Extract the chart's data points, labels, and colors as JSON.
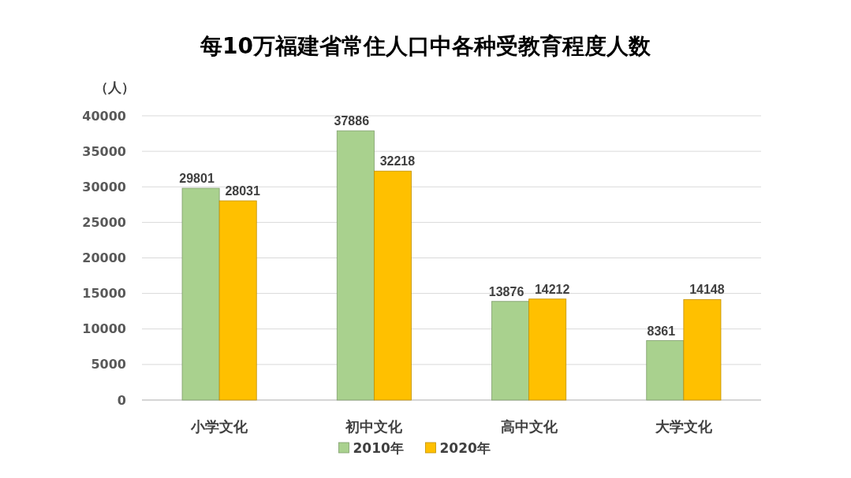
{
  "chart_data": {
    "type": "bar",
    "title": "每10万福建省常住人口中各种受教育程度人数",
    "ylabel": "（人）",
    "categories": [
      "小学文化",
      "初中文化",
      "高中文化",
      "大学文化"
    ],
    "series": [
      {
        "name": "2010年",
        "color": "#a9d18e",
        "values": [
          29801,
          37886,
          13876,
          8361
        ]
      },
      {
        "name": "2020年",
        "color": "#ffc000",
        "values": [
          28031,
          32218,
          14212,
          14148
        ]
      }
    ],
    "ylim": [
      0,
      40000
    ],
    "yticks": [
      0,
      5000,
      10000,
      15000,
      20000,
      25000,
      30000,
      35000,
      40000
    ],
    "grid": "y",
    "legend": "bottom",
    "data_labels": true
  }
}
